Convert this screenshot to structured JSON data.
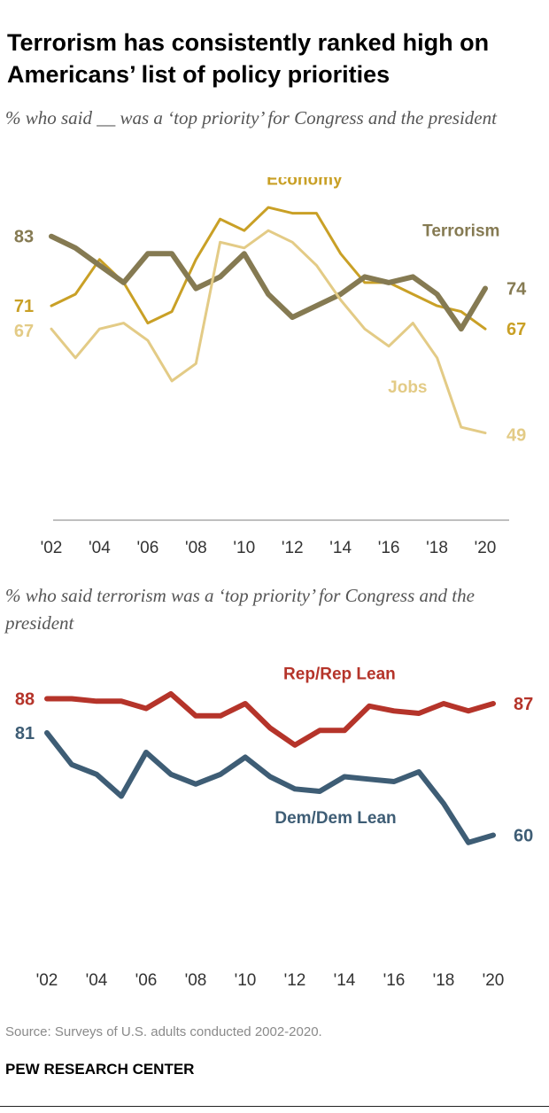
{
  "title": "Terrorism has consistently ranked high on Americans’ list of policy priorities",
  "footer": {
    "source": "Source: Surveys of U.S. adults conducted 2002-2020.",
    "credit": "PEW RESEARCH CENTER"
  },
  "chart_data": [
    {
      "type": "line",
      "subtitle": "% who said __ was a ‘top priority’ for Congress and the president",
      "x": [
        2002,
        2003,
        2004,
        2005,
        2006,
        2007,
        2008,
        2009,
        2010,
        2011,
        2012,
        2013,
        2014,
        2015,
        2016,
        2017,
        2018,
        2019,
        2020
      ],
      "x_tick_labels": [
        "'02",
        "'04",
        "'06",
        "'08",
        "'10",
        "'12",
        "'14",
        "'16",
        "'18",
        "'20"
      ],
      "x_tick_values": [
        2002,
        2004,
        2006,
        2008,
        2010,
        2012,
        2014,
        2016,
        2018,
        2020
      ],
      "ylim": [
        35,
        92
      ],
      "grid": false,
      "series": [
        {
          "name": "Economy",
          "color": "#c9a026",
          "values": [
            71,
            73,
            79,
            75,
            68,
            70,
            79,
            86,
            84,
            88,
            87,
            87,
            80,
            75,
            75,
            73,
            71,
            70,
            67
          ],
          "end_label": "67",
          "start_label": "71"
        },
        {
          "name": "Terrorism",
          "color": "#857a52",
          "values": [
            83,
            81,
            78,
            75,
            80,
            80,
            74,
            76,
            80,
            73,
            69,
            71,
            73,
            76,
            75,
            76,
            73,
            67,
            74
          ],
          "end_label": "74",
          "start_label": "83"
        },
        {
          "name": "Jobs",
          "color": "#e3cb86",
          "values": [
            67,
            62,
            67,
            68,
            65,
            58,
            61,
            82,
            81,
            84,
            82,
            78,
            72,
            67,
            64,
            68,
            62,
            50,
            49
          ],
          "end_label": "49",
          "start_label": "67"
        }
      ]
    },
    {
      "type": "line",
      "subtitle": "% who said terrorism was a ‘top priority’ for Congress and the president",
      "x": [
        2002,
        2003,
        2004,
        2005,
        2006,
        2007,
        2008,
        2009,
        2010,
        2011,
        2012,
        2013,
        2014,
        2015,
        2016,
        2017,
        2018,
        2019,
        2020
      ],
      "x_tick_labels": [
        "'02",
        "'04",
        "'06",
        "'08",
        "'10",
        "'12",
        "'14",
        "'16",
        "'18",
        "'20"
      ],
      "x_tick_values": [
        2002,
        2004,
        2006,
        2008,
        2010,
        2012,
        2014,
        2016,
        2018,
        2020
      ],
      "ylim": [
        35,
        95
      ],
      "grid": false,
      "series": [
        {
          "name": "Rep/Rep Lean",
          "color": "#b5342a",
          "values": [
            88,
            88,
            87.5,
            87.5,
            86,
            89,
            84.5,
            84.5,
            87,
            82,
            78.5,
            81.5,
            81.5,
            86.5,
            85.5,
            85,
            87,
            85.5,
            87
          ],
          "end_label": "87",
          "start_label": "88"
        },
        {
          "name": "Dem/Dem Lean",
          "color": "#3e5d75",
          "values": [
            81,
            74.5,
            72.5,
            68,
            77,
            72.5,
            70.5,
            72.5,
            76,
            72,
            69.5,
            69,
            72,
            71.5,
            71,
            73,
            66.5,
            58.5,
            60
          ],
          "end_label": "60",
          "start_label": "81"
        }
      ]
    }
  ]
}
